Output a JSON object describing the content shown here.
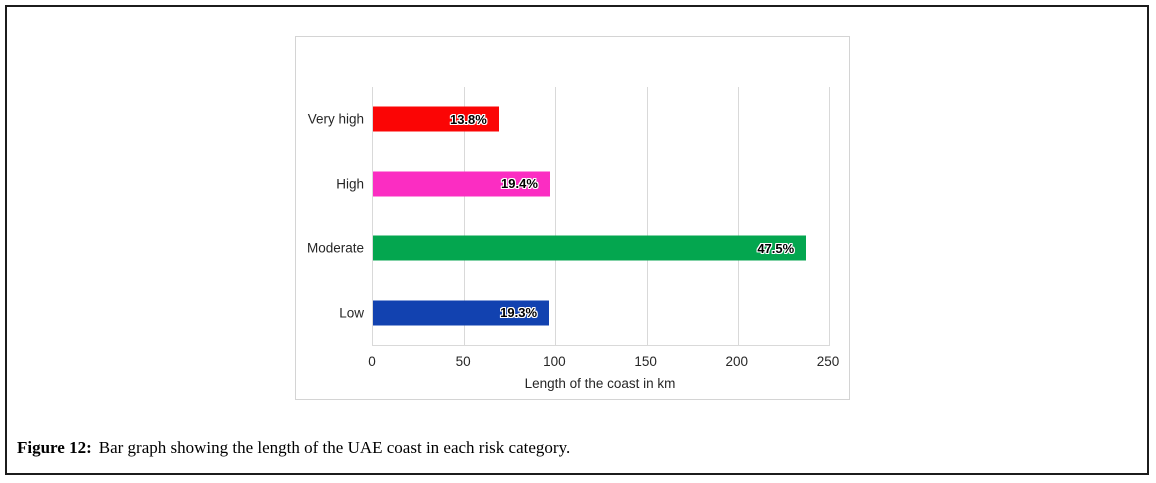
{
  "figure": {
    "caption_label": "Figure 12:",
    "caption_text": "Bar graph showing the length of the UAE coast in each risk category."
  },
  "chart_data": {
    "type": "bar",
    "orientation": "horizontal",
    "title": "",
    "xlabel": "Length of the coast in km",
    "ylabel": "",
    "categories": [
      "Very high",
      "High",
      "Moderate",
      "Low"
    ],
    "values_km": [
      69,
      97,
      237.5,
      96.5
    ],
    "bar_labels": [
      "13.8%",
      "19.4%",
      "47.5%",
      "19.3%"
    ],
    "bar_colors": [
      "#fb0505",
      "#fb2dc2",
      "#04a64f",
      "#1242b0"
    ],
    "xlim": [
      0,
      250
    ],
    "xticks": [
      0,
      50,
      100,
      150,
      200,
      250
    ],
    "grid": "vertical",
    "legend": "none",
    "gridline_color": "#d9d9d9",
    "label_halo_color": "#ffffff"
  }
}
